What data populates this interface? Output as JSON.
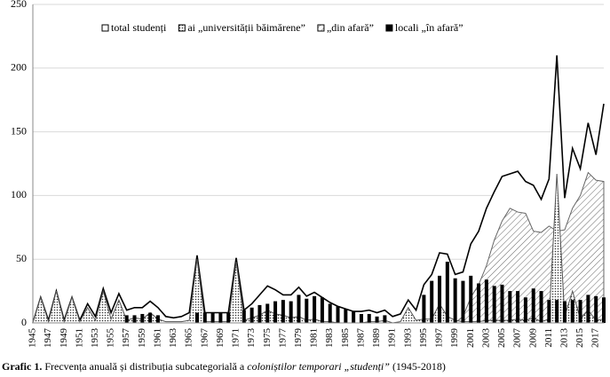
{
  "chart_data": {
    "type": "area",
    "categories": [
      "1945",
      null,
      "1947",
      null,
      "1949",
      null,
      "1951",
      null,
      "1953",
      null,
      "1955",
      null,
      "1957",
      null,
      "1959",
      null,
      "1961",
      null,
      "1963",
      null,
      "1965",
      null,
      "1967",
      null,
      "1969",
      null,
      "1971",
      null,
      "1973",
      null,
      "1975",
      null,
      "1977",
      null,
      "1979",
      null,
      "1981",
      null,
      "1983",
      null,
      "1985",
      null,
      "1987",
      null,
      "1989",
      null,
      "1991",
      null,
      "1993",
      null,
      "1995",
      null,
      "1997",
      null,
      "1999",
      null,
      "2001",
      null,
      "2003",
      null,
      "2005",
      null,
      "2007",
      null,
      "2009",
      null,
      "2011",
      null,
      "2013",
      null,
      "2015",
      null,
      "2017",
      null
    ],
    "series": [
      {
        "name": "total studenți",
        "color": "#000000",
        "pattern": "line",
        "values": [
          0,
          20,
          2,
          25,
          2,
          20,
          2,
          15,
          5,
          27,
          8,
          23,
          10,
          12,
          12,
          17,
          12,
          5,
          4,
          5,
          8,
          53,
          8,
          8,
          8,
          8,
          51,
          10,
          15,
          22,
          29,
          26,
          22,
          22,
          28,
          21,
          24,
          20,
          16,
          13,
          11,
          9,
          9,
          10,
          8,
          10,
          5,
          7,
          18,
          10,
          30,
          38,
          55,
          54,
          38,
          40,
          62,
          72,
          90,
          103,
          115,
          117,
          119,
          111,
          108,
          97,
          113,
          210,
          98,
          137,
          121,
          157,
          132,
          172
        ]
      },
      {
        "name": "ai „universității băimărene”",
        "color": "#555555",
        "pattern": "dots",
        "values": [
          0,
          20,
          1,
          25,
          1,
          20,
          1,
          12,
          2,
          25,
          3,
          18,
          2,
          4,
          3,
          8,
          3,
          1,
          1,
          1,
          2,
          50,
          1,
          1,
          1,
          1,
          48,
          2,
          4,
          6,
          10,
          7,
          6,
          4,
          5,
          2,
          3,
          1,
          1,
          0,
          0,
          0,
          0,
          1,
          1,
          2,
          0,
          1,
          12,
          2,
          3,
          3,
          15,
          5,
          2,
          1,
          1,
          1,
          2,
          2,
          2,
          2,
          3,
          2,
          4,
          1,
          3,
          117,
          5,
          25,
          3,
          10,
          2,
          3
        ]
      },
      {
        "name": "„din afară”",
        "color": "#666666",
        "pattern": "hatch",
        "values": [
          0,
          0,
          0,
          0,
          0,
          0,
          0,
          0,
          0,
          0,
          0,
          0,
          0,
          0,
          0,
          0,
          0,
          0,
          0,
          0,
          0,
          0,
          0,
          0,
          0,
          0,
          0,
          0,
          0,
          0,
          0,
          0,
          0,
          0,
          0,
          0,
          0,
          0,
          0,
          0,
          0,
          0,
          0,
          0,
          0,
          0,
          0,
          0,
          0,
          0,
          0,
          0,
          0,
          0,
          0,
          5,
          20,
          30,
          45,
          65,
          80,
          90,
          87,
          86,
          72,
          71,
          76,
          72,
          73,
          90,
          100,
          118,
          112,
          111
        ]
      },
      {
        "name": "locali „în afară”",
        "color": "#000000",
        "pattern": "solid",
        "values": [
          0,
          0,
          0,
          0,
          0,
          0,
          0,
          0,
          0,
          0,
          0,
          0,
          6,
          6,
          7,
          8,
          6,
          0,
          0,
          0,
          0,
          8,
          8,
          8,
          8,
          8,
          0,
          10,
          12,
          14,
          15,
          17,
          18,
          17,
          22,
          19,
          21,
          20,
          15,
          13,
          11,
          9,
          7,
          7,
          5,
          6,
          0,
          0,
          0,
          0,
          22,
          33,
          37,
          48,
          35,
          33,
          37,
          31,
          34,
          29,
          30,
          25,
          25,
          20,
          27,
          25,
          18,
          18,
          17,
          18,
          18,
          22,
          21,
          20
        ]
      }
    ],
    "ylim": [
      0,
      250
    ],
    "yticks": [
      0,
      50,
      100,
      150,
      200,
      250
    ],
    "grid": true,
    "legend": "top",
    "caption": {
      "label": "Grafic 1.",
      "text": "Frecvența anuală și distribuția subcategorială a",
      "italic": "coloniștilor temporari „studenți”",
      "tail": "(1945-2018)"
    }
  }
}
